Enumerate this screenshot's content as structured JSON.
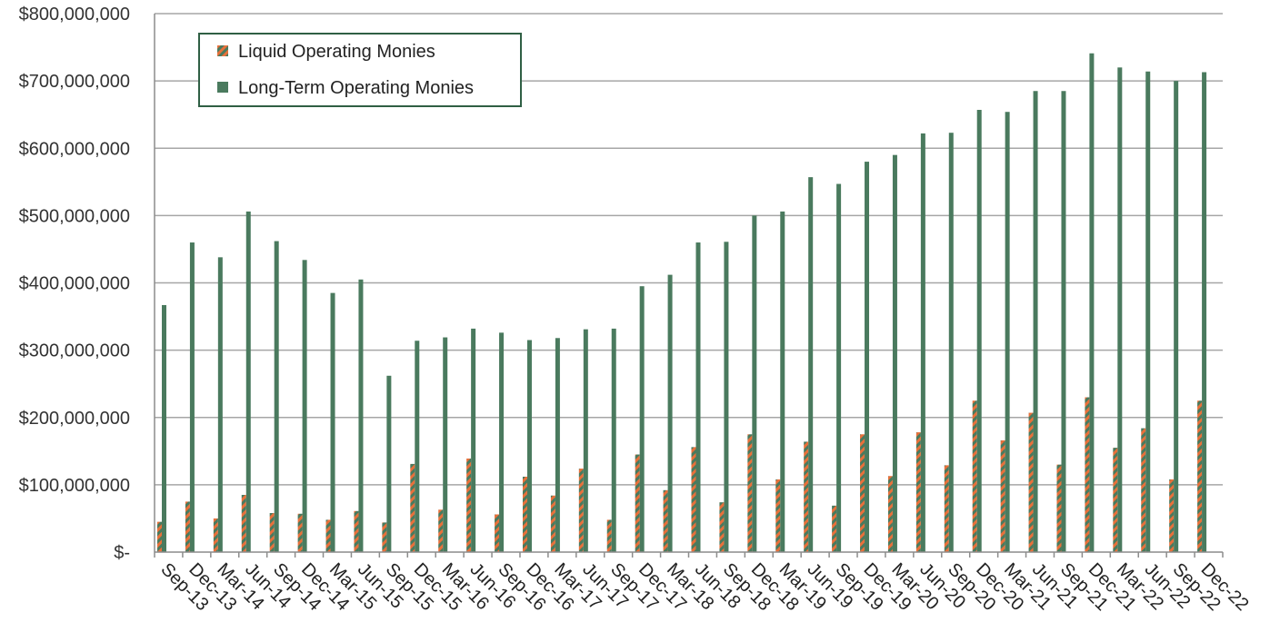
{
  "chart_data": {
    "type": "bar",
    "title": "",
    "xlabel": "",
    "ylabel": "",
    "ylim": [
      0,
      800000000
    ],
    "yticks": [
      {
        "value": 0,
        "label": "$-"
      },
      {
        "value": 100000000,
        "label": "$100,000,000"
      },
      {
        "value": 200000000,
        "label": "$200,000,000"
      },
      {
        "value": 300000000,
        "label": "$300,000,000"
      },
      {
        "value": 400000000,
        "label": "$400,000,000"
      },
      {
        "value": 500000000,
        "label": "$500,000,000"
      },
      {
        "value": 600000000,
        "label": "$600,000,000"
      },
      {
        "value": 700000000,
        "label": "$700,000,000"
      },
      {
        "value": 800000000,
        "label": "$800,000,000"
      }
    ],
    "grid": true,
    "legend_position": "top-left",
    "categories": [
      "Sep-13",
      "Dec-13",
      "Mar-14",
      "Jun-14",
      "Sep-14",
      "Dec-14",
      "Mar-15",
      "Jun-15",
      "Sep-15",
      "Dec-15",
      "Mar-16",
      "Jun-16",
      "Sep-16",
      "Dec-16",
      "Mar-17",
      "Jun-17",
      "Sep-17",
      "Dec-17",
      "Mar-18",
      "Jun-18",
      "Sep-18",
      "Dec-18",
      "Mar-19",
      "Jun-19",
      "Sep-19",
      "Dec-19",
      "Mar-20",
      "Jun-20",
      "Sep-20",
      "Dec-20",
      "Mar-21",
      "Jun-21",
      "Sep-21",
      "Dec-21",
      "Mar-22",
      "Jun-22",
      "Sep-22",
      "Dec-22"
    ],
    "series": [
      {
        "name": "Liquid Operating Monies",
        "color": "#E8703A",
        "pattern": "diagonal-stripe",
        "values": [
          45000000,
          75000000,
          50000000,
          85000000,
          58000000,
          57000000,
          48000000,
          61000000,
          44000000,
          131000000,
          63000000,
          139000000,
          56000000,
          112000000,
          84000000,
          124000000,
          48000000,
          145000000,
          92000000,
          156000000,
          74000000,
          175000000,
          108000000,
          164000000,
          69000000,
          175000000,
          113000000,
          178000000,
          129000000,
          225000000,
          166000000,
          207000000,
          130000000,
          230000000,
          155000000,
          184000000,
          108000000,
          225000000
        ]
      },
      {
        "name": "Long-Term Operating Monies",
        "color": "#4A7A5E",
        "pattern": "solid",
        "values": [
          367000000,
          460000000,
          438000000,
          506000000,
          462000000,
          434000000,
          385000000,
          405000000,
          262000000,
          314000000,
          319000000,
          332000000,
          326000000,
          315000000,
          318000000,
          331000000,
          332000000,
          395000000,
          412000000,
          460000000,
          461000000,
          500000000,
          506000000,
          557000000,
          547000000,
          580000000,
          590000000,
          622000000,
          623000000,
          657000000,
          654000000,
          685000000,
          685000000,
          741000000,
          720000000,
          714000000,
          700000000,
          713000000
        ]
      }
    ]
  }
}
